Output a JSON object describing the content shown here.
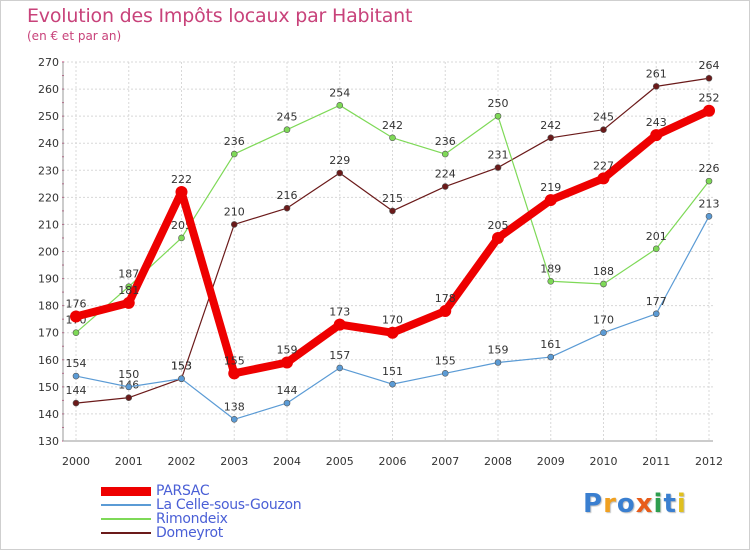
{
  "chart_data": {
    "type": "line",
    "title": "Evolution des Impôts locaux par Habitant",
    "subtitle": "(en € et par an)",
    "xlabel": "",
    "ylabel": "",
    "ylim": [
      130,
      270
    ],
    "yticks": [
      130,
      140,
      150,
      160,
      170,
      180,
      190,
      200,
      210,
      220,
      230,
      240,
      250,
      260,
      270
    ],
    "x": [
      "2000",
      "2001",
      "2002",
      "2003",
      "2004",
      "2005",
      "2006",
      "2007",
      "2008",
      "2009",
      "2010",
      "2011",
      "2012"
    ],
    "grid": true,
    "series": [
      {
        "name": "Domeyrot",
        "color": "#6b1a1a",
        "values": [
          144,
          146,
          153,
          210,
          216,
          229,
          215,
          224,
          231,
          242,
          245,
          261,
          264
        ]
      },
      {
        "name": "Rimondeix",
        "color": "#7ed957",
        "values": [
          170,
          187,
          205,
          236,
          245,
          254,
          242,
          236,
          250,
          189,
          188,
          201,
          226
        ]
      },
      {
        "name": "La Celle-sous-Gouzon",
        "color": "#5b9bd5",
        "values": [
          154,
          150,
          153,
          138,
          144,
          157,
          151,
          155,
          159,
          161,
          170,
          177,
          213
        ]
      },
      {
        "name": "PARSAC",
        "color": "#ee0000",
        "values": [
          176,
          181,
          222,
          155,
          159,
          173,
          170,
          178,
          205,
          219,
          227,
          243,
          252
        ]
      }
    ]
  },
  "legend": {
    "items": [
      {
        "label": "PARSAC",
        "color": "#ee0000"
      },
      {
        "label": "La Celle-sous-Gouzon",
        "color": "#5b9bd5"
      },
      {
        "label": "Rimondeix",
        "color": "#7ed957"
      },
      {
        "label": "Domeyrot",
        "color": "#6b1a1a"
      }
    ]
  },
  "logo": {
    "letters": [
      "P",
      "r",
      "o",
      "x",
      "i",
      "t",
      "i"
    ],
    "colors": [
      "#3a7fd0",
      "#f0a020",
      "#3a7fd0",
      "#e85c1a",
      "#2e9e4e",
      "#3a7fd0",
      "#e0c020"
    ]
  }
}
